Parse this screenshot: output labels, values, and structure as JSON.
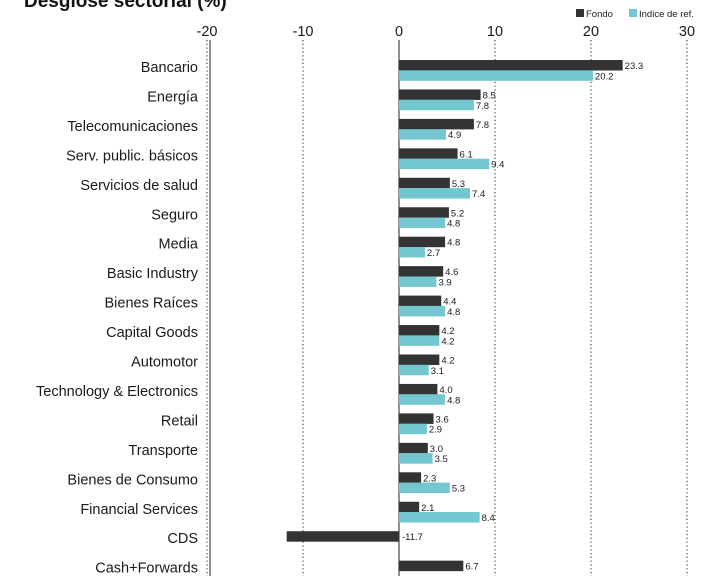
{
  "chart_data": {
    "type": "bar",
    "orientation": "horizontal",
    "title": "Desglose sectorial (%)",
    "categories": [
      "Bancario",
      "Energía",
      "Telecomunicaciones",
      "Serv. public. básicos",
      "Servicios de salud",
      "Seguro",
      "Media",
      "Basic Industry",
      "Bienes Raíces",
      "Capital Goods",
      "Automotor",
      "Technology & Electronics",
      "Retail",
      "Transporte",
      "Bienes de Consumo",
      "Financial Services",
      "CDS",
      "Cash+Forwards"
    ],
    "series": [
      {
        "name": "Fondo",
        "color": "#333333",
        "values": [
          23.3,
          8.5,
          7.8,
          6.1,
          5.3,
          5.2,
          4.8,
          4.6,
          4.4,
          4.2,
          4.2,
          4.0,
          3.6,
          3.0,
          2.3,
          2.1,
          -11.7,
          6.7
        ]
      },
      {
        "name": "Indice de ref.",
        "color": "#74c7d1",
        "values": [
          20.2,
          7.8,
          4.9,
          9.4,
          7.4,
          4.8,
          2.7,
          3.9,
          4.8,
          4.2,
          3.1,
          4.8,
          2.9,
          3.5,
          5.3,
          8.4,
          null,
          null
        ]
      }
    ],
    "value_labels": {
      "Fondo": [
        "23.3",
        "8.5",
        "7.8",
        "6.1",
        "5.3",
        "5.2",
        "4.8",
        "4.6",
        "4.4",
        "4.2",
        "4.2",
        "4.0",
        "3.6",
        "3.0",
        "2.3",
        "2.1",
        "-11.7",
        "6.7"
      ],
      "Indice de ref.": [
        "20.2",
        "7.8",
        "4.9",
        "9.4",
        "7.4",
        "4.8",
        "2.7",
        "3.9",
        "4.8",
        "4.2",
        "3.1",
        "4.8",
        "2.9",
        "3.5",
        "5.3",
        "8.4",
        "",
        ""
      ]
    },
    "xticks": [
      -20,
      -10,
      0,
      10,
      20,
      30
    ],
    "xtick_labels": [
      "-20",
      "-10",
      "0",
      "10",
      "20",
      "30"
    ],
    "xlim": [
      -20,
      30
    ],
    "grid": "dotted vertical",
    "legend_position": "top-right"
  }
}
